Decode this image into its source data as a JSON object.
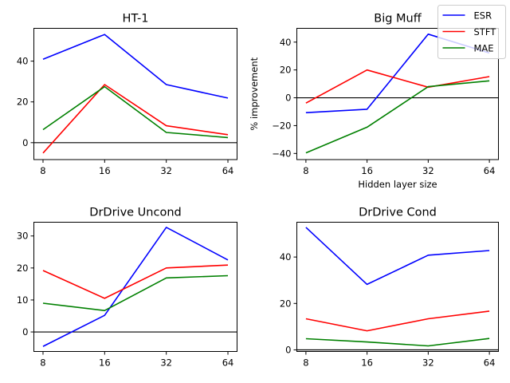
{
  "chart_data": {
    "type": "line",
    "xlabel": "Hidden layer size",
    "ylabel": "% improvement",
    "categories": [
      "8",
      "16",
      "32",
      "64"
    ],
    "legend": {
      "placement": "top-right",
      "entries": [
        {
          "name": "ESR",
          "color": "#0000ff"
        },
        {
          "name": "STFT",
          "color": "#ff0000"
        },
        {
          "name": "MAE",
          "color": "#008000"
        }
      ]
    },
    "zero_line_color": "#000000",
    "subplots": [
      {
        "title": "HT-1",
        "ylim": [
          -8.3,
          56.1
        ],
        "yticks": [
          0,
          20,
          40
        ],
        "series": [
          {
            "name": "ESR",
            "values": [
              40.9,
              53.1,
              28.5,
              21.9
            ]
          },
          {
            "name": "STFT",
            "values": [
              -5.1,
              28.5,
              8.3,
              3.9
            ]
          },
          {
            "name": "MAE",
            "values": [
              6.4,
              27.5,
              5.0,
              2.5
            ]
          }
        ]
      },
      {
        "title": "Big Muff",
        "ylim": [
          -44.4,
          49.9
        ],
        "yticks": [
          -40,
          -20,
          0,
          20,
          40
        ],
        "show_ylabel": true,
        "show_xlabel": true,
        "series": [
          {
            "name": "ESR",
            "values": [
              -10.7,
              -8.2,
              45.7,
              32.2
            ]
          },
          {
            "name": "STFT",
            "values": [
              -3.8,
              20.0,
              7.6,
              15.2
            ]
          },
          {
            "name": "MAE",
            "values": [
              -39.6,
              -21.1,
              8.0,
              12.2
            ]
          }
        ]
      },
      {
        "title": "DrDrive Uncond",
        "ylim": [
          -6.1,
          34.3
        ],
        "yticks": [
          0,
          10,
          20,
          30
        ],
        "series": [
          {
            "name": "ESR",
            "values": [
              -4.5,
              5.2,
              32.7,
              22.5
            ]
          },
          {
            "name": "STFT",
            "values": [
              19.2,
              10.5,
              20.0,
              20.9
            ]
          },
          {
            "name": "MAE",
            "values": [
              9.0,
              6.7,
              16.9,
              17.6
            ]
          }
        ]
      },
      {
        "title": "DrDrive Cond",
        "ylim": [
          -0.7,
          55.0
        ],
        "yticks": [
          0,
          20,
          40
        ],
        "series": [
          {
            "name": "ESR",
            "values": [
              52.8,
              28.2,
              40.8,
              42.8
            ]
          },
          {
            "name": "STFT",
            "values": [
              13.4,
              8.2,
              13.4,
              16.7
            ]
          },
          {
            "name": "MAE",
            "values": [
              4.8,
              3.4,
              1.7,
              4.9
            ]
          }
        ]
      }
    ]
  }
}
